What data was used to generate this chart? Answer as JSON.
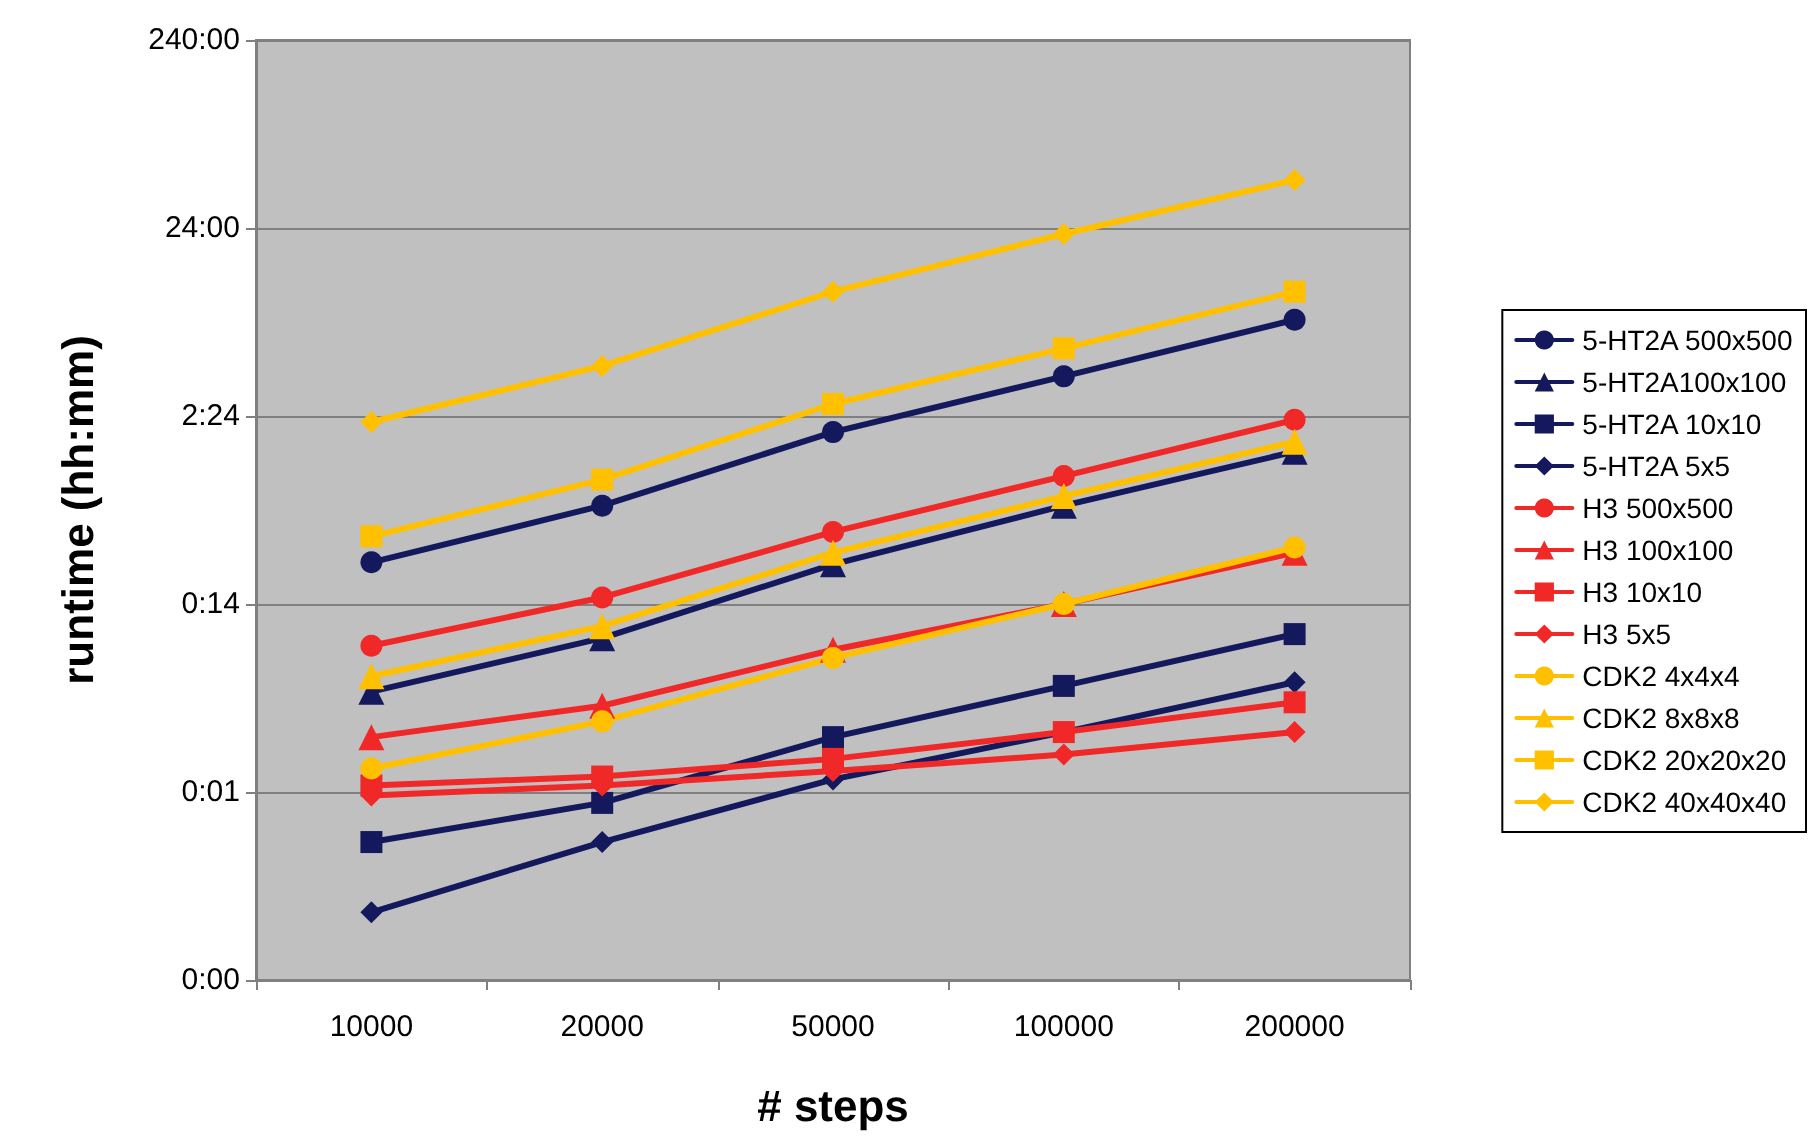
{
  "chart_data": {
    "type": "line",
    "xlabel": "# steps",
    "ylabel": "runtime (hh:mm)",
    "log": "y",
    "grid": "y",
    "legend": "right",
    "line_style": "solid",
    "categories": [
      "10000",
      "20000",
      "50000",
      "100000",
      "200000"
    ],
    "ylim": [
      0.0024,
      240
    ],
    "yticks": [
      {
        "value": 0.0024,
        "label": "0:00"
      },
      {
        "value": 0.024,
        "label": "0:01"
      },
      {
        "value": 0.24,
        "label": "0:14"
      },
      {
        "value": 2.4,
        "label": "2:24"
      },
      {
        "value": 24,
        "label": "24:00"
      },
      {
        "value": 240,
        "label": "240:00"
      }
    ],
    "series": [
      {
        "name": "5-HT2A 500x500",
        "color": "#14195e",
        "marker": "circle",
        "values": [
          0.4,
          0.8,
          1.97,
          3.9,
          7.8
        ]
      },
      {
        "name": "5-HT2A100x100",
        "color": "#14195e",
        "marker": "triangle",
        "values": [
          0.082,
          0.158,
          0.39,
          0.8,
          1.55
        ]
      },
      {
        "name": "5-HT2A 10x10",
        "color": "#14195e",
        "marker": "square",
        "values": [
          0.013,
          0.021,
          0.047,
          0.088,
          0.166
        ]
      },
      {
        "name": "5-HT2A 5x5",
        "color": "#14195e",
        "marker": "diamond",
        "values": [
          0.0055,
          0.013,
          0.028,
          0.05,
          0.092
        ]
      },
      {
        "name": "H3 500x500",
        "color": "#f02828",
        "marker": "circle",
        "values": [
          0.144,
          0.26,
          0.58,
          1.15,
          2.29
        ]
      },
      {
        "name": "H3 100x100",
        "color": "#f02828",
        "marker": "triangle",
        "values": [
          0.047,
          0.069,
          0.137,
          0.24,
          0.45
        ]
      },
      {
        "name": "H3 10x10",
        "color": "#f02828",
        "marker": "square",
        "values": [
          0.026,
          0.029,
          0.036,
          0.05,
          0.072
        ]
      },
      {
        "name": "H3 5x5",
        "color": "#f02828",
        "marker": "diamond",
        "values": [
          0.023,
          0.026,
          0.031,
          0.038,
          0.05
        ]
      },
      {
        "name": "CDK2 4x4x4",
        "color": "#ffc000",
        "marker": "circle",
        "values": [
          0.032,
          0.057,
          0.124,
          0.24,
          0.48
        ]
      },
      {
        "name": "CDK2 8x8x8",
        "color": "#ffc000",
        "marker": "triangle",
        "values": [
          0.099,
          0.183,
          0.45,
          0.9,
          1.75
        ]
      },
      {
        "name": "CDK2 20x20x20",
        "color": "#ffc000",
        "marker": "square",
        "values": [
          0.55,
          1.1,
          2.78,
          5.5,
          11.0
        ]
      },
      {
        "name": "CDK2 40x40x40",
        "color": "#ffc000",
        "marker": "diamond",
        "values": [
          2.23,
          4.43,
          11.0,
          22.3,
          43.2
        ]
      }
    ]
  }
}
